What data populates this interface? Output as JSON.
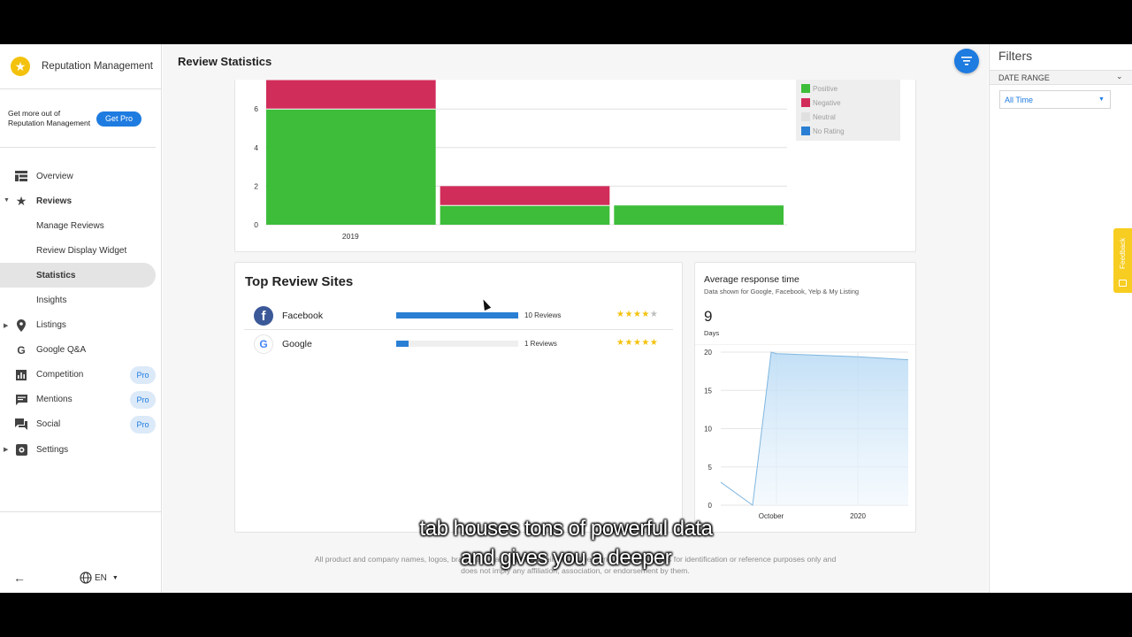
{
  "app": {
    "name": "Reputation Management"
  },
  "promo": {
    "line1": "Get more out of",
    "line2": "Reputation Management",
    "button": "Get Pro"
  },
  "nav": [
    {
      "label": "Overview",
      "icon": "dashboard-icon",
      "caret": "",
      "bold": false,
      "active": false,
      "pro": ""
    },
    {
      "label": "Reviews",
      "icon": "star-icon",
      "caret": "▼",
      "bold": true,
      "active": false,
      "pro": ""
    },
    {
      "label": "Manage Reviews",
      "icon": "",
      "caret": "",
      "bold": false,
      "active": false,
      "pro": ""
    },
    {
      "label": "Review Display Widget",
      "icon": "",
      "caret": "",
      "bold": false,
      "active": false,
      "pro": ""
    },
    {
      "label": "Statistics",
      "icon": "",
      "caret": "",
      "bold": true,
      "active": true,
      "pro": ""
    },
    {
      "label": "Insights",
      "icon": "",
      "caret": "",
      "bold": false,
      "active": false,
      "pro": ""
    },
    {
      "label": "Listings",
      "icon": "location-pin-icon",
      "caret": "▶",
      "bold": false,
      "active": false,
      "pro": ""
    },
    {
      "label": "Google Q&A",
      "icon": "google-g-icon",
      "caret": "",
      "bold": false,
      "active": false,
      "pro": ""
    },
    {
      "label": "Competition",
      "icon": "bar-chart-icon",
      "caret": "",
      "bold": false,
      "active": false,
      "pro": "Pro"
    },
    {
      "label": "Mentions",
      "icon": "comment-icon",
      "caret": "",
      "bold": false,
      "active": false,
      "pro": "Pro"
    },
    {
      "label": "Social",
      "icon": "forum-icon",
      "caret": "",
      "bold": false,
      "active": false,
      "pro": "Pro"
    },
    {
      "label": "Settings",
      "icon": "gear-icon",
      "caret": "▶",
      "bold": false,
      "active": false,
      "pro": ""
    }
  ],
  "language": "EN",
  "header": {
    "title": "Review Statistics"
  },
  "colors": {
    "positive": "#3dbd3a",
    "negative": "#d12d5a",
    "neutral": "#e0e0e0",
    "no_rating": "#2a7fd4",
    "accent": "#1e7be0"
  },
  "chart_data": [
    {
      "type": "bar",
      "stacked": true,
      "categories": [
        "2019",
        "",
        ""
      ],
      "series": [
        {
          "name": "Positive",
          "values": [
            6,
            1,
            1
          ]
        },
        {
          "name": "Negative",
          "values": [
            1.5,
            1,
            0
          ]
        },
        {
          "name": "Neutral",
          "values": [
            0,
            0,
            0
          ]
        },
        {
          "name": "No Rating",
          "values": [
            0,
            0,
            0
          ]
        }
      ],
      "yticks": [
        0,
        2,
        4,
        6
      ],
      "ylim": [
        0,
        7.5
      ],
      "legend": "top-right",
      "grid": true
    },
    {
      "type": "area",
      "x": [
        "",
        "",
        "October",
        "",
        "2020",
        ""
      ],
      "values": [
        3,
        0,
        20,
        19.8,
        19.4,
        19
      ],
      "yticks": [
        0,
        5,
        10,
        15,
        20
      ],
      "ylim": [
        0,
        20
      ],
      "grid": true
    }
  ],
  "top_sites": {
    "title": "Top Review Sites",
    "rows": [
      {
        "name": "Facebook",
        "count_label": "10 Reviews",
        "share": 1.0,
        "rating": 4,
        "logo": "facebook-logo"
      },
      {
        "name": "Google",
        "count_label": "1 Reviews",
        "share": 0.1,
        "rating": 5,
        "logo": "google-logo"
      }
    ]
  },
  "response": {
    "title": "Average response time",
    "subtitle": "Data shown for Google, Facebook, Yelp & My Listing",
    "value": "9",
    "unit": "Days"
  },
  "footer": {
    "line1": "All product and company names, logos, brands are trademarks of their respective owners. Use of them is for identification or reference purposes only and",
    "line2": "does not imply any affiliation, association, or endorsement by them."
  },
  "filters": {
    "title": "Filters",
    "section": "DATE RANGE",
    "date_value": "All Time"
  },
  "feedback": "Feedback",
  "subtitles": {
    "line1": "tab houses tons of powerful data",
    "line2": "and gives you a deeper"
  }
}
